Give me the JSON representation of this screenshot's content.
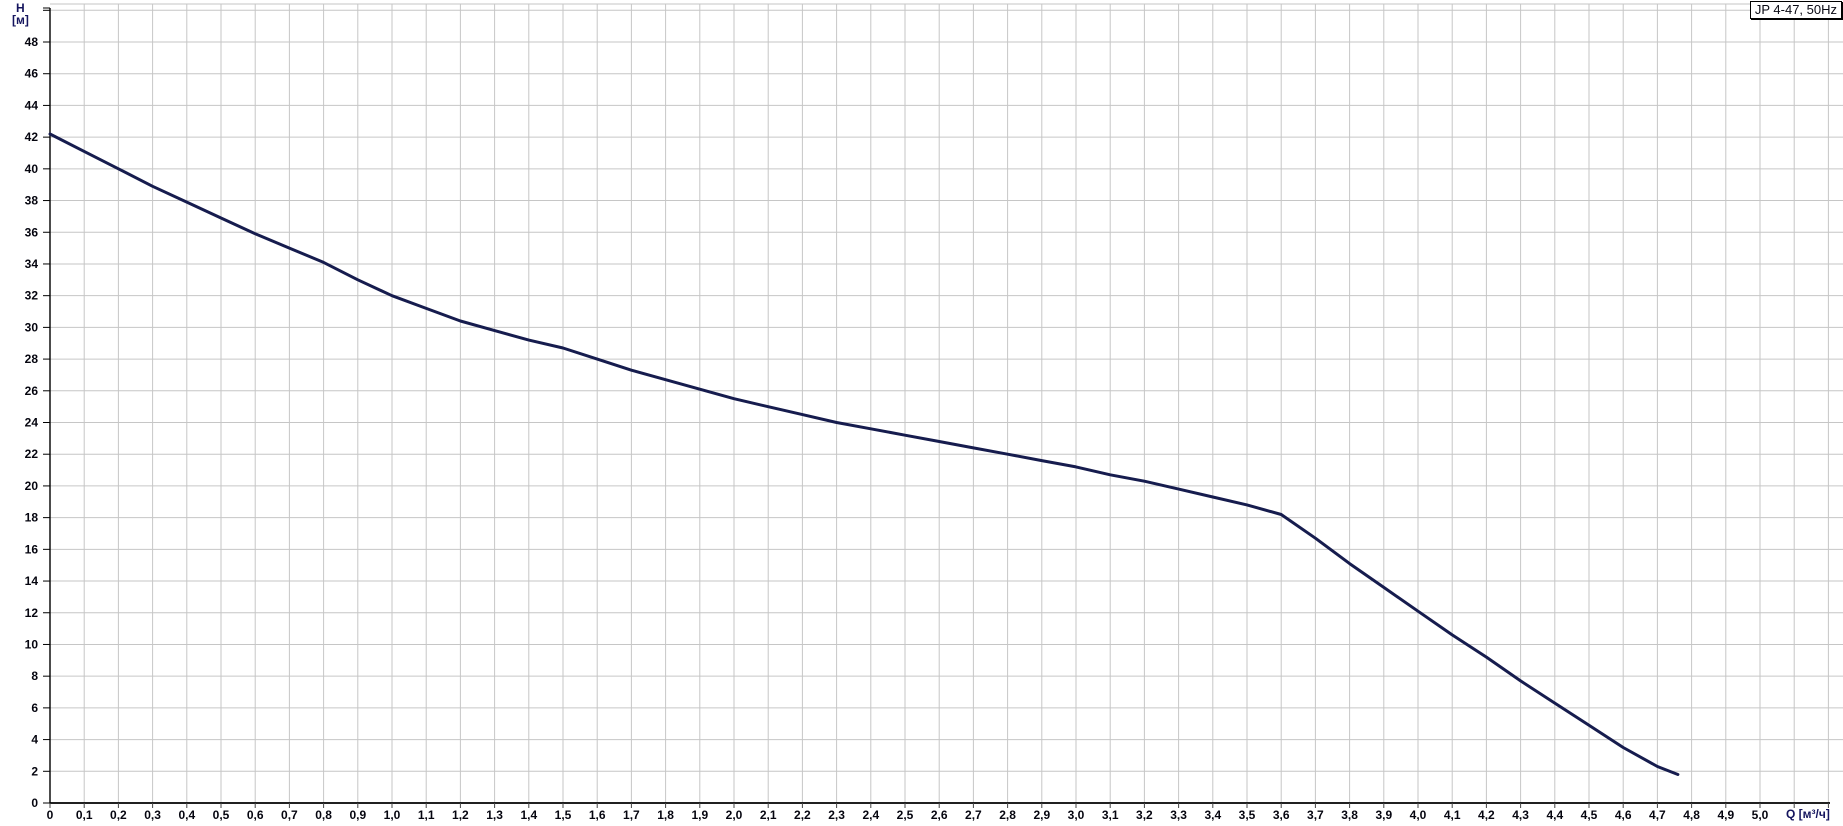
{
  "window": {
    "background_color": "#ffffff"
  },
  "legend": {
    "label": "JP 4-47, 50Hz"
  },
  "axes": {
    "y_unit_line1": "H",
    "y_unit_line2": "[м]",
    "x_unit": "Q [м³/ч]"
  },
  "colors": {
    "curve": "#161c4e",
    "grid": "#c6c6c6",
    "axis": "#000000",
    "tick": "#444444",
    "tick_label": "#05050f",
    "unit_label": "#15155e"
  },
  "chart_data": {
    "type": "line",
    "title": "JP 4-47, 50Hz",
    "xlabel": "Q [м³/ч]",
    "ylabel": "H [м]",
    "xlim": [
      0,
      5.2
    ],
    "ylim": [
      0,
      49.8
    ],
    "x_tick_step": 0.1,
    "y_tick_step": 2,
    "grid": true,
    "legend_position": "top-right",
    "decimal_separator": ",",
    "x_tick_labels": [
      "0",
      "0,1",
      "0,2",
      "0,3",
      "0,4",
      "0,5",
      "0,6",
      "0,7",
      "0,8",
      "0,9",
      "1,0",
      "1,1",
      "1,2",
      "1,3",
      "1,4",
      "1,5",
      "1,6",
      "1,7",
      "1,8",
      "1,9",
      "2,0",
      "2,1",
      "2,2",
      "2,3",
      "2,4",
      "2,5",
      "2,6",
      "2,7",
      "2,8",
      "2,9",
      "3,0",
      "3,1",
      "3,2",
      "3,3",
      "3,4",
      "3,5",
      "3,6",
      "3,7",
      "3,8",
      "3,9",
      "4,0",
      "4,1",
      "4,2",
      "4,3",
      "4,4",
      "4,5",
      "4,6",
      "4,7",
      "4,8",
      "4,9",
      "5,0"
    ],
    "y_tick_labels": [
      "0",
      "2",
      "4",
      "6",
      "8",
      "10",
      "12",
      "14",
      "16",
      "18",
      "20",
      "22",
      "24",
      "26",
      "28",
      "30",
      "32",
      "34",
      "36",
      "38",
      "40",
      "42",
      "44",
      "46",
      "48"
    ],
    "series": [
      {
        "name": "JP 4-47, 50Hz",
        "color": "#161c4e",
        "points": [
          [
            0.0,
            42.2
          ],
          [
            0.1,
            41.1
          ],
          [
            0.2,
            40.0
          ],
          [
            0.3,
            38.9
          ],
          [
            0.4,
            37.9
          ],
          [
            0.5,
            36.9
          ],
          [
            0.6,
            35.9
          ],
          [
            0.7,
            35.0
          ],
          [
            0.8,
            34.1
          ],
          [
            0.9,
            33.0
          ],
          [
            1.0,
            32.0
          ],
          [
            1.1,
            31.2
          ],
          [
            1.2,
            30.4
          ],
          [
            1.3,
            29.8
          ],
          [
            1.4,
            29.2
          ],
          [
            1.5,
            28.7
          ],
          [
            1.6,
            28.0
          ],
          [
            1.7,
            27.3
          ],
          [
            1.8,
            26.7
          ],
          [
            1.9,
            26.1
          ],
          [
            2.0,
            25.5
          ],
          [
            2.1,
            25.0
          ],
          [
            2.2,
            24.5
          ],
          [
            2.3,
            24.0
          ],
          [
            2.4,
            23.6
          ],
          [
            2.5,
            23.2
          ],
          [
            2.6,
            22.8
          ],
          [
            2.7,
            22.4
          ],
          [
            2.8,
            22.0
          ],
          [
            2.9,
            21.6
          ],
          [
            3.0,
            21.2
          ],
          [
            3.1,
            20.7
          ],
          [
            3.2,
            20.3
          ],
          [
            3.3,
            19.8
          ],
          [
            3.4,
            19.3
          ],
          [
            3.5,
            18.8
          ],
          [
            3.6,
            18.2
          ],
          [
            3.7,
            16.7
          ],
          [
            3.8,
            15.1
          ],
          [
            3.9,
            13.6
          ],
          [
            4.0,
            12.1
          ],
          [
            4.1,
            10.6
          ],
          [
            4.2,
            9.2
          ],
          [
            4.3,
            7.7
          ],
          [
            4.4,
            6.3
          ],
          [
            4.5,
            4.9
          ],
          [
            4.6,
            3.5
          ],
          [
            4.7,
            2.3
          ],
          [
            4.76,
            1.8
          ]
        ]
      }
    ]
  }
}
